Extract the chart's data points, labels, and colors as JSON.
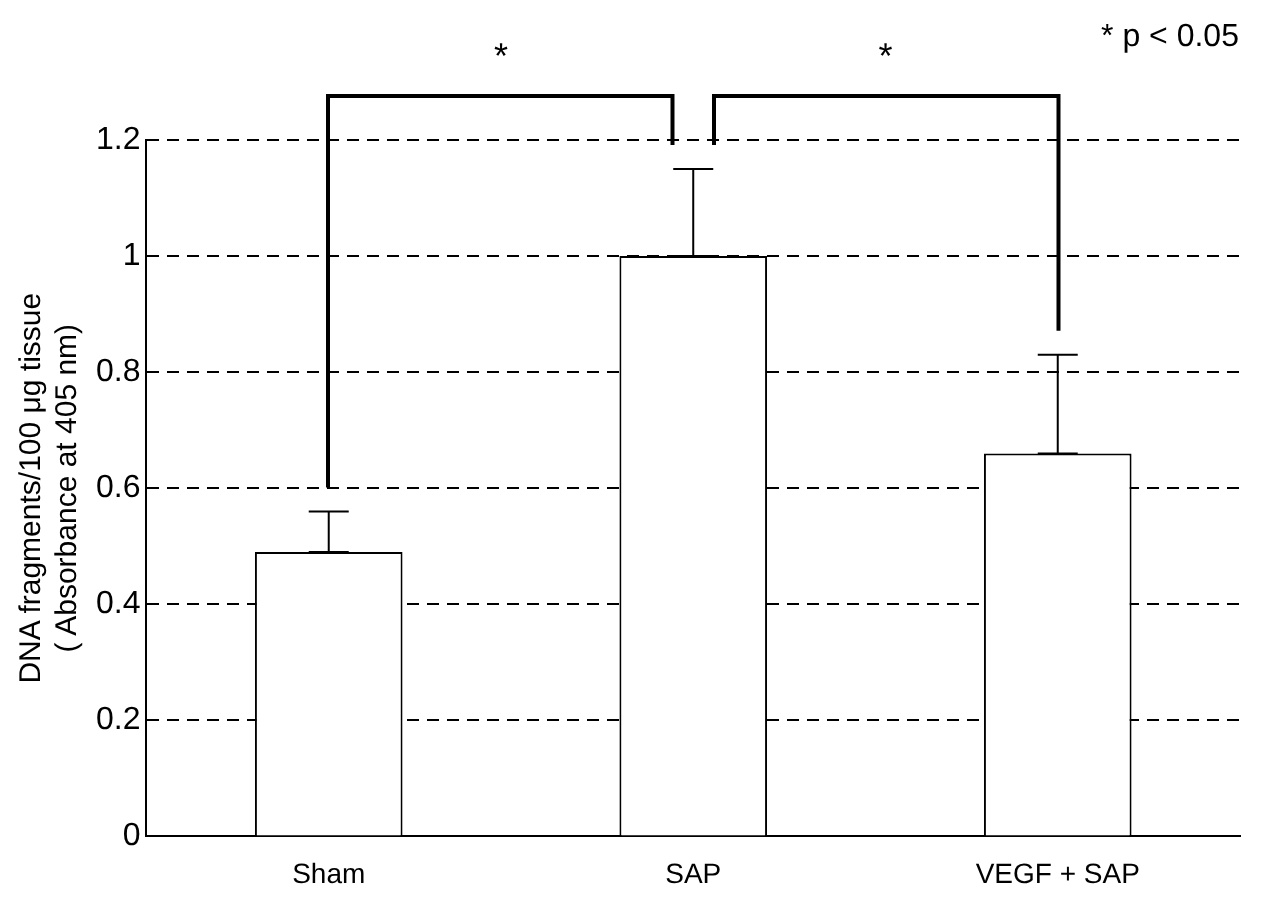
{
  "chart_data": {
    "type": "bar",
    "ylabel": "DNA fragments/100 μg tissue\n( Absorbance at 405 nm)",
    "categories": [
      "Sham",
      "SAP",
      "VEGF + SAP"
    ],
    "values": [
      0.49,
      1.0,
      0.66
    ],
    "errors": [
      [
        0.49,
        0.56
      ],
      [
        1.0,
        1.15
      ],
      [
        0.66,
        0.83
      ]
    ],
    "color": "#ffffff",
    "ylim": [
      0,
      1.2
    ],
    "yticks": [
      0,
      0.2,
      0.4,
      0.6,
      0.8,
      1,
      1.2
    ],
    "grid": "y",
    "annotations": [
      "*",
      "*",
      "* p < 0.05"
    ]
  }
}
